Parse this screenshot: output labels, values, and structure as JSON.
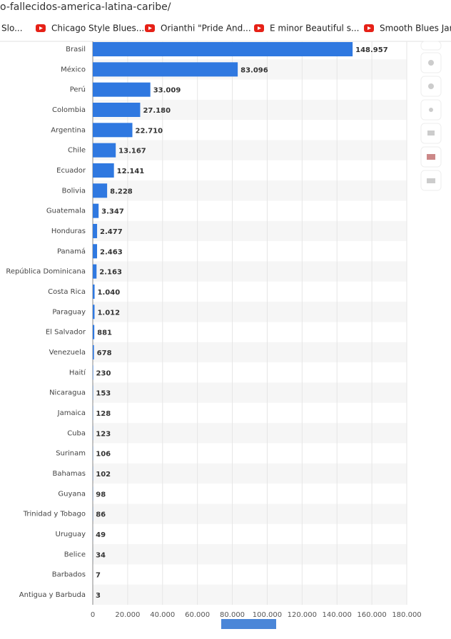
{
  "url": "o-fallecidos-america-latina-caribe/",
  "bookmarks": [
    "Slo...",
    "Chicago Style Blues...",
    "Orianthi \"Pride And...",
    "E minor Beautiful s...",
    "Smooth Blues Jam"
  ],
  "chart_data": {
    "type": "bar",
    "orientation": "horizontal",
    "color": "#2f78e0",
    "grid": true,
    "categories": [
      "Brasil",
      "México",
      "Perú",
      "Colombia",
      "Argentina",
      "Chile",
      "Ecuador",
      "Bolivia",
      "Guatemala",
      "Honduras",
      "Panamá",
      "República Dominicana",
      "Costa Rica",
      "Paraguay",
      "El Salvador",
      "Venezuela",
      "Haití",
      "Nicaragua",
      "Jamaica",
      "Cuba",
      "Surinam",
      "Bahamas",
      "Guyana",
      "Trinidad y Tobago",
      "Uruguay",
      "Belice",
      "Barbados",
      "Antigua y Barbuda"
    ],
    "values": [
      148957,
      83096,
      33009,
      27180,
      22710,
      13167,
      12141,
      8228,
      3347,
      2477,
      2463,
      2163,
      1040,
      1012,
      881,
      678,
      230,
      153,
      128,
      123,
      106,
      102,
      98,
      86,
      49,
      34,
      7,
      3
    ],
    "value_labels": [
      "148.957",
      "83.096",
      "33.009",
      "27.180",
      "22.710",
      "13.167",
      "12.141",
      "8.228",
      "3.347",
      "2.477",
      "2.463",
      "2.163",
      "1.040",
      "1.012",
      "881",
      "678",
      "230",
      "153",
      "128",
      "123",
      "106",
      "102",
      "98",
      "86",
      "49",
      "34",
      "7",
      "3"
    ],
    "xlim": [
      0,
      180000
    ],
    "xticks": [
      0,
      {
        "value": 20000,
        "label": "20.000"
      },
      {
        "value": 40000,
        "label": "40.000"
      },
      {
        "value": 60000,
        "label": "60.000"
      },
      {
        "value": 80000,
        "label": "80.000"
      },
      {
        "value": 100000,
        "label": "100.000"
      },
      {
        "value": 120000,
        "label": "120.000"
      },
      {
        "value": 140000,
        "label": "140.000"
      },
      {
        "value": 160000,
        "label": "160.000"
      },
      {
        "value": 180000,
        "label": "180.000"
      }
    ]
  }
}
